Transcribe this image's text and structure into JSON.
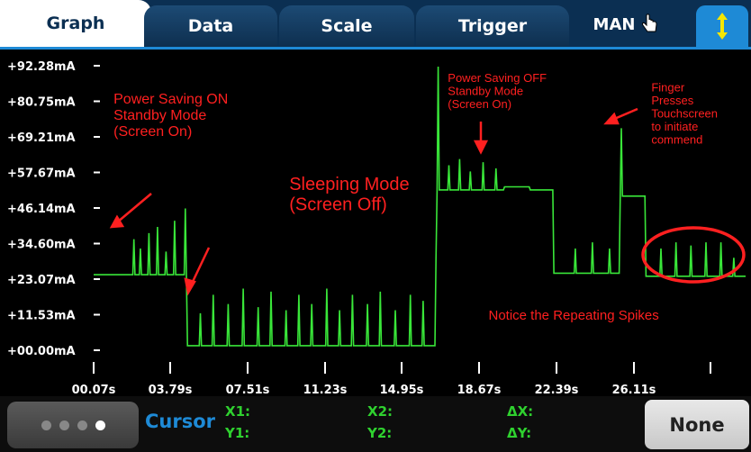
{
  "tabs": [
    {
      "label": "Graph",
      "active": true
    },
    {
      "label": "Data",
      "active": false
    },
    {
      "label": "Scale",
      "active": false
    },
    {
      "label": "Trigger",
      "active": false
    }
  ],
  "mode_label": "MAN",
  "icons": {
    "hand": "pointing-hand-icon",
    "updown": "up-down-arrows-icon"
  },
  "chart_data": {
    "type": "line",
    "y_ticks": [
      "+92.28mA",
      "+80.75mA",
      "+69.21mA",
      "+57.67mA",
      "+46.14mA",
      "+34.60mA",
      "+23.07mA",
      "+11.53mA",
      "+00.00mA"
    ],
    "x_ticks": [
      "00.07s",
      "03.79s",
      "07.51s",
      "11.23s",
      "14.95s",
      "18.67s",
      "22.39s",
      "26.11s"
    ],
    "ylim": [
      0,
      92.28
    ],
    "xlim": [
      0.07,
      30.5
    ],
    "series": [
      {
        "color": "#39e639",
        "points": [
          [
            0.07,
            24.5
          ],
          [
            1.9,
            24.5
          ],
          [
            1.95,
            36
          ],
          [
            2.0,
            24.5
          ],
          [
            2.2,
            24.5
          ],
          [
            2.25,
            33
          ],
          [
            2.3,
            24.5
          ],
          [
            2.6,
            24.5
          ],
          [
            2.65,
            38
          ],
          [
            2.7,
            24.5
          ],
          [
            3.0,
            24.5
          ],
          [
            3.05,
            40
          ],
          [
            3.1,
            24.5
          ],
          [
            3.4,
            24.5
          ],
          [
            3.45,
            32
          ],
          [
            3.5,
            24.5
          ],
          [
            3.8,
            24.5
          ],
          [
            3.85,
            42
          ],
          [
            3.9,
            24.5
          ],
          [
            4.3,
            24.5
          ],
          [
            4.35,
            46
          ],
          [
            4.4,
            24.5
          ],
          [
            4.45,
            1.5
          ],
          [
            5.0,
            1.5
          ],
          [
            5.05,
            12
          ],
          [
            5.1,
            1.5
          ],
          [
            5.6,
            1.5
          ],
          [
            5.65,
            18
          ],
          [
            5.7,
            1.5
          ],
          [
            6.3,
            1.5
          ],
          [
            6.35,
            15
          ],
          [
            6.4,
            1.5
          ],
          [
            7.0,
            1.5
          ],
          [
            7.05,
            20
          ],
          [
            7.1,
            1.5
          ],
          [
            7.7,
            1.5
          ],
          [
            7.75,
            14
          ],
          [
            7.8,
            1.5
          ],
          [
            8.3,
            1.5
          ],
          [
            8.35,
            19
          ],
          [
            8.4,
            1.5
          ],
          [
            9.0,
            1.5
          ],
          [
            9.05,
            13
          ],
          [
            9.1,
            1.5
          ],
          [
            9.6,
            1.5
          ],
          [
            9.65,
            18
          ],
          [
            9.7,
            1.5
          ],
          [
            10.2,
            1.5
          ],
          [
            10.25,
            15
          ],
          [
            10.3,
            1.5
          ],
          [
            10.9,
            1.5
          ],
          [
            10.95,
            20
          ],
          [
            11.0,
            1.5
          ],
          [
            11.5,
            1.5
          ],
          [
            11.55,
            13
          ],
          [
            11.6,
            1.5
          ],
          [
            12.1,
            1.5
          ],
          [
            12.15,
            18
          ],
          [
            12.2,
            1.5
          ],
          [
            12.8,
            1.5
          ],
          [
            12.85,
            15
          ],
          [
            12.9,
            1.5
          ],
          [
            13.4,
            1.5
          ],
          [
            13.45,
            19
          ],
          [
            13.5,
            1.5
          ],
          [
            14.1,
            1.5
          ],
          [
            14.15,
            13
          ],
          [
            14.2,
            1.5
          ],
          [
            14.8,
            1.5
          ],
          [
            14.85,
            18
          ],
          [
            14.9,
            1.5
          ],
          [
            15.4,
            1.5
          ],
          [
            15.45,
            16
          ],
          [
            15.5,
            1.5
          ],
          [
            16.0,
            1.5
          ],
          [
            16.05,
            30
          ],
          [
            16.1,
            52
          ],
          [
            16.15,
            92
          ],
          [
            16.2,
            52
          ],
          [
            16.6,
            52
          ],
          [
            16.65,
            60
          ],
          [
            16.7,
            52
          ],
          [
            17.1,
            52
          ],
          [
            17.15,
            62
          ],
          [
            17.2,
            52
          ],
          [
            17.6,
            52
          ],
          [
            17.65,
            58
          ],
          [
            17.7,
            52
          ],
          [
            18.2,
            52
          ],
          [
            18.25,
            61
          ],
          [
            18.3,
            52
          ],
          [
            18.8,
            52
          ],
          [
            18.85,
            59
          ],
          [
            18.9,
            52
          ],
          [
            19.2,
            52
          ],
          [
            19.25,
            53
          ],
          [
            20.4,
            53
          ],
          [
            20.45,
            52
          ],
          [
            21.5,
            52
          ],
          [
            21.55,
            25
          ],
          [
            22.5,
            25
          ],
          [
            22.55,
            33
          ],
          [
            22.6,
            25
          ],
          [
            23.3,
            25
          ],
          [
            23.35,
            35
          ],
          [
            23.4,
            25
          ],
          [
            24.1,
            25
          ],
          [
            24.15,
            33
          ],
          [
            24.2,
            25
          ],
          [
            24.6,
            25
          ],
          [
            24.65,
            50
          ],
          [
            24.7,
            72
          ],
          [
            24.75,
            50
          ],
          [
            25.8,
            50
          ],
          [
            25.85,
            24
          ],
          [
            26.5,
            24
          ],
          [
            26.55,
            33
          ],
          [
            26.6,
            24
          ],
          [
            27.2,
            24
          ],
          [
            27.25,
            35
          ],
          [
            27.3,
            24
          ],
          [
            27.9,
            24
          ],
          [
            27.95,
            34
          ],
          [
            28.0,
            24
          ],
          [
            28.6,
            24
          ],
          [
            28.65,
            35
          ],
          [
            28.7,
            24
          ],
          [
            29.3,
            24
          ],
          [
            29.35,
            35
          ],
          [
            29.4,
            24
          ],
          [
            29.9,
            24
          ],
          [
            29.95,
            30
          ],
          [
            30.0,
            24
          ],
          [
            30.5,
            24
          ]
        ]
      }
    ],
    "annotations": [
      {
        "lines": [
          "Power Saving ON",
          "Standby Mode",
          "(Screen On)"
        ],
        "color": "#ff2020",
        "size": 16,
        "x": 1.0,
        "y": 80
      },
      {
        "lines": [
          "Sleeping Mode",
          "(Screen Off)"
        ],
        "color": "#ff2020",
        "size": 20,
        "x": 9.2,
        "y": 52
      },
      {
        "lines": [
          "Power Saving OFF",
          "Standby Mode",
          "(Screen On)"
        ],
        "color": "#ff2020",
        "size": 13,
        "x": 16.6,
        "y": 87
      },
      {
        "lines": [
          "Finger",
          "Presses",
          "Touchscreen",
          "to initiate",
          "commend"
        ],
        "color": "#ff2020",
        "size": 13,
        "x": 26.1,
        "y": 84
      },
      {
        "lines": [
          "Notice the Repeating Spikes"
        ],
        "color": "#ff2020",
        "size": 15,
        "x": 18.5,
        "y": 10
      }
    ]
  },
  "bottom": {
    "cursor_label": "Cursor",
    "x1": "X1:",
    "y1": "Y1:",
    "x2": "X2:",
    "y2": "Y2:",
    "dx": "ΔX:",
    "dy": "ΔY:",
    "none_label": "None"
  }
}
